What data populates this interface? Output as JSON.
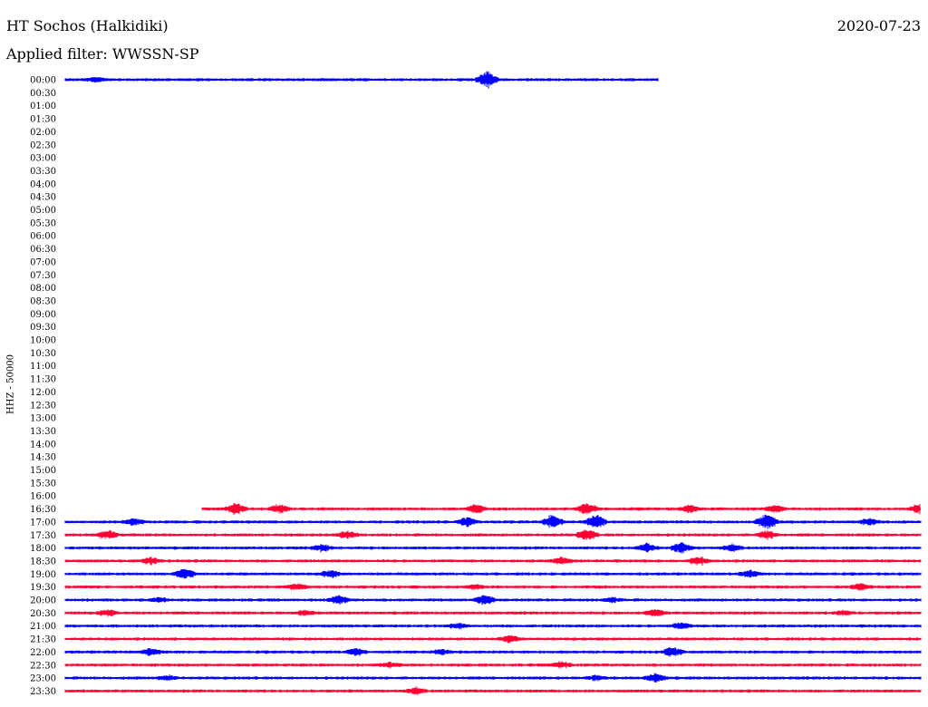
{
  "header": {
    "title": "HT Sochos (Halkidiki)",
    "date": "2020-07-23",
    "filter": "Applied filter: WWSSN-SP"
  },
  "chart_data": {
    "type": "line",
    "title": "HT Sochos (Halkidiki)",
    "ylabel": "HHZ - 50000",
    "xlabel": "",
    "grid": false,
    "colors": {
      "blue": "#0000ff",
      "red": "#ff0033"
    },
    "rows": [
      {
        "label": "00:00",
        "color": "blue",
        "start": 0.0,
        "end": 0.693,
        "events": [
          {
            "pos": 0.493,
            "amp": 8
          },
          {
            "pos": 0.035,
            "amp": 2
          }
        ]
      },
      {
        "label": "00:30"
      },
      {
        "label": "01:00"
      },
      {
        "label": "01:30"
      },
      {
        "label": "02:00"
      },
      {
        "label": "02:30"
      },
      {
        "label": "03:00"
      },
      {
        "label": "03:30"
      },
      {
        "label": "04:00"
      },
      {
        "label": "04:30"
      },
      {
        "label": "05:00"
      },
      {
        "label": "05:30"
      },
      {
        "label": "06:00"
      },
      {
        "label": "06:30"
      },
      {
        "label": "07:00"
      },
      {
        "label": "07:30"
      },
      {
        "label": "08:00"
      },
      {
        "label": "08:30"
      },
      {
        "label": "09:00"
      },
      {
        "label": "09:30"
      },
      {
        "label": "10:00"
      },
      {
        "label": "10:30"
      },
      {
        "label": "11:00"
      },
      {
        "label": "11:30"
      },
      {
        "label": "12:00"
      },
      {
        "label": "12:30"
      },
      {
        "label": "13:00"
      },
      {
        "label": "13:30"
      },
      {
        "label": "14:00"
      },
      {
        "label": "14:30"
      },
      {
        "label": "15:00"
      },
      {
        "label": "15:30"
      },
      {
        "label": "16:00"
      },
      {
        "label": "16:30",
        "color": "red",
        "start": 0.16,
        "end": 1.0,
        "events": [
          {
            "pos": 0.2,
            "amp": 5
          },
          {
            "pos": 0.25,
            "amp": 4
          },
          {
            "pos": 0.48,
            "amp": 4
          },
          {
            "pos": 0.61,
            "amp": 5
          },
          {
            "pos": 0.73,
            "amp": 3
          },
          {
            "pos": 0.83,
            "amp": 3
          },
          {
            "pos": 1.0,
            "amp": 5
          }
        ]
      },
      {
        "label": "17:00",
        "color": "blue",
        "start": 0.0,
        "end": 1.0,
        "events": [
          {
            "pos": 0.08,
            "amp": 3
          },
          {
            "pos": 0.47,
            "amp": 4
          },
          {
            "pos": 0.57,
            "amp": 7
          },
          {
            "pos": 0.62,
            "amp": 7
          },
          {
            "pos": 0.82,
            "amp": 8
          },
          {
            "pos": 0.94,
            "amp": 3
          }
        ]
      },
      {
        "label": "17:30",
        "color": "red",
        "start": 0.0,
        "end": 1.0,
        "events": [
          {
            "pos": 0.05,
            "amp": 4
          },
          {
            "pos": 0.33,
            "amp": 3
          },
          {
            "pos": 0.61,
            "amp": 5
          },
          {
            "pos": 0.82,
            "amp": 4
          }
        ]
      },
      {
        "label": "18:00",
        "color": "blue",
        "start": 0.0,
        "end": 1.0,
        "events": [
          {
            "pos": 0.3,
            "amp": 3
          },
          {
            "pos": 0.68,
            "amp": 4
          },
          {
            "pos": 0.72,
            "amp": 5
          },
          {
            "pos": 0.78,
            "amp": 3
          }
        ]
      },
      {
        "label": "18:30",
        "color": "red",
        "start": 0.0,
        "end": 1.0,
        "events": [
          {
            "pos": 0.1,
            "amp": 3
          },
          {
            "pos": 0.58,
            "amp": 3
          },
          {
            "pos": 0.74,
            "amp": 4
          }
        ]
      },
      {
        "label": "19:00",
        "color": "blue",
        "start": 0.0,
        "end": 1.0,
        "events": [
          {
            "pos": 0.14,
            "amp": 5
          },
          {
            "pos": 0.31,
            "amp": 3
          },
          {
            "pos": 0.8,
            "amp": 3
          }
        ]
      },
      {
        "label": "19:30",
        "color": "red",
        "start": 0.0,
        "end": 1.0,
        "events": [
          {
            "pos": 0.27,
            "amp": 3
          },
          {
            "pos": 0.48,
            "amp": 2
          },
          {
            "pos": 0.93,
            "amp": 3
          }
        ]
      },
      {
        "label": "20:00",
        "color": "blue",
        "start": 0.0,
        "end": 1.0,
        "events": [
          {
            "pos": 0.11,
            "amp": 2
          },
          {
            "pos": 0.32,
            "amp": 4
          },
          {
            "pos": 0.49,
            "amp": 5
          },
          {
            "pos": 0.64,
            "amp": 2
          }
        ]
      },
      {
        "label": "20:30",
        "color": "red",
        "start": 0.0,
        "end": 1.0,
        "events": [
          {
            "pos": 0.05,
            "amp": 3
          },
          {
            "pos": 0.28,
            "amp": 2
          },
          {
            "pos": 0.69,
            "amp": 3
          },
          {
            "pos": 0.91,
            "amp": 2
          }
        ]
      },
      {
        "label": "21:00",
        "color": "blue",
        "start": 0.0,
        "end": 1.0,
        "events": [
          {
            "pos": 0.72,
            "amp": 3
          },
          {
            "pos": 0.46,
            "amp": 2
          }
        ]
      },
      {
        "label": "21:30",
        "color": "red",
        "start": 0.0,
        "end": 1.0,
        "events": [
          {
            "pos": 0.52,
            "amp": 3
          }
        ]
      },
      {
        "label": "22:00",
        "color": "blue",
        "start": 0.0,
        "end": 1.0,
        "events": [
          {
            "pos": 0.1,
            "amp": 3
          },
          {
            "pos": 0.34,
            "amp": 3
          },
          {
            "pos": 0.44,
            "amp": 2
          },
          {
            "pos": 0.71,
            "amp": 4
          }
        ]
      },
      {
        "label": "22:30",
        "color": "red",
        "start": 0.0,
        "end": 1.0,
        "events": [
          {
            "pos": 0.38,
            "amp": 2
          },
          {
            "pos": 0.58,
            "amp": 3
          }
        ]
      },
      {
        "label": "23:00",
        "color": "blue",
        "start": 0.0,
        "end": 1.0,
        "events": [
          {
            "pos": 0.12,
            "amp": 2
          },
          {
            "pos": 0.69,
            "amp": 4
          },
          {
            "pos": 0.62,
            "amp": 2
          }
        ]
      },
      {
        "label": "23:30",
        "color": "red",
        "start": 0.0,
        "end": 1.0,
        "events": [
          {
            "pos": 0.41,
            "amp": 3
          }
        ]
      }
    ]
  }
}
